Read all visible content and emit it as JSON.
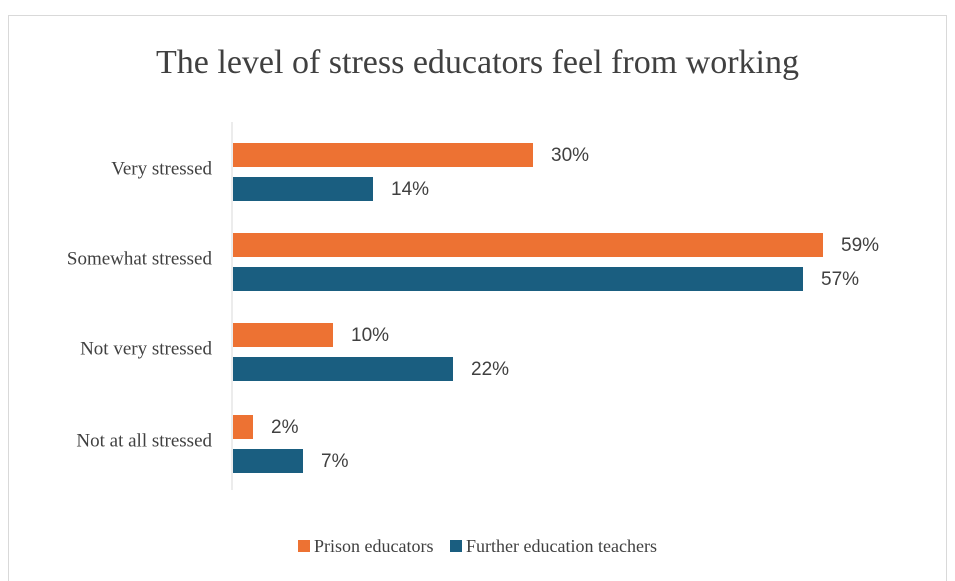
{
  "chart_data": {
    "type": "bar",
    "orientation": "horizontal",
    "title": "The level of stress educators feel from working",
    "categories": [
      "Very stressed",
      "Somewhat stressed",
      "Not very stressed",
      "Not at all stressed"
    ],
    "series": [
      {
        "name": "Prison educators",
        "values": [
          30,
          59,
          10,
          2
        ],
        "color": "#ed7233"
      },
      {
        "name": "Further education teachers",
        "values": [
          14,
          57,
          22,
          7
        ],
        "color": "#1a5e80"
      }
    ],
    "value_suffix": "%",
    "xlabel": "",
    "ylabel": "",
    "grid": false,
    "legend_position": "bottom"
  }
}
